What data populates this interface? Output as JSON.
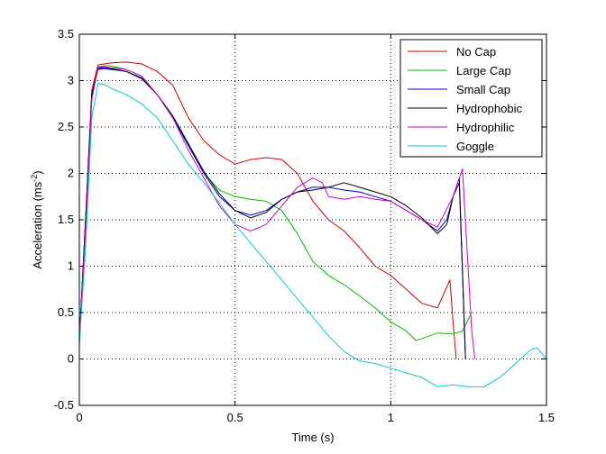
{
  "chart_data": {
    "type": "line",
    "title": "",
    "xlabel": "Time (s)",
    "ylabel_main": "Acceleration (ms",
    "ylabel_sup": "-2",
    "ylabel_close": ")",
    "xlim": [
      0,
      1.5
    ],
    "ylim": [
      -0.5,
      3.5
    ],
    "xticks": [
      0,
      0.5,
      1,
      1.5
    ],
    "xtick_labels": [
      "0",
      "0.5",
      "1",
      "1.5"
    ],
    "yticks": [
      -0.5,
      0,
      0.5,
      1,
      1.5,
      2,
      2.5,
      3,
      3.5
    ],
    "ytick_labels": [
      "-0.5",
      "0",
      "0.5",
      "1",
      "1.5",
      "2",
      "2.5",
      "3",
      "3.5"
    ],
    "grid": true,
    "legend_position": "top-right",
    "series": [
      {
        "name": "No Cap",
        "color": "#cc0000",
        "x": [
          0,
          0.02,
          0.04,
          0.06,
          0.08,
          0.1,
          0.15,
          0.2,
          0.25,
          0.3,
          0.35,
          0.4,
          0.45,
          0.5,
          0.55,
          0.6,
          0.65,
          0.7,
          0.75,
          0.8,
          0.85,
          0.9,
          0.95,
          1.0,
          1.05,
          1.1,
          1.15,
          1.17,
          1.19,
          1.2,
          1.21
        ],
        "y": [
          0.2,
          1.5,
          2.9,
          3.17,
          3.18,
          3.19,
          3.2,
          3.18,
          3.1,
          2.95,
          2.6,
          2.35,
          2.2,
          2.1,
          2.15,
          2.17,
          2.15,
          2.0,
          1.7,
          1.5,
          1.38,
          1.2,
          1.0,
          0.9,
          0.75,
          0.6,
          0.55,
          0.7,
          0.85,
          0.4,
          0.0
        ]
      },
      {
        "name": "Large Cap",
        "color": "#00bb00",
        "x": [
          0,
          0.02,
          0.04,
          0.06,
          0.08,
          0.1,
          0.15,
          0.2,
          0.25,
          0.3,
          0.35,
          0.4,
          0.45,
          0.5,
          0.55,
          0.6,
          0.65,
          0.7,
          0.75,
          0.8,
          0.85,
          0.9,
          0.95,
          1.0,
          1.05,
          1.08,
          1.1,
          1.15,
          1.2,
          1.23,
          1.26
        ],
        "y": [
          0.15,
          1.4,
          2.8,
          3.15,
          3.16,
          3.16,
          3.12,
          3.05,
          2.85,
          2.6,
          2.3,
          2.0,
          1.82,
          1.75,
          1.72,
          1.7,
          1.6,
          1.35,
          1.05,
          0.9,
          0.8,
          0.68,
          0.55,
          0.4,
          0.3,
          0.2,
          0.22,
          0.28,
          0.27,
          0.3,
          0.5
        ]
      },
      {
        "name": "Small Cap",
        "color": "#0000cc",
        "x": [
          0,
          0.02,
          0.04,
          0.06,
          0.08,
          0.1,
          0.15,
          0.2,
          0.25,
          0.3,
          0.35,
          0.4,
          0.45,
          0.5,
          0.55,
          0.6,
          0.65,
          0.7,
          0.75,
          0.8,
          0.85,
          0.9,
          0.95,
          1.0,
          1.05,
          1.1,
          1.15,
          1.18,
          1.2,
          1.22,
          1.24
        ],
        "y": [
          0.2,
          1.5,
          2.85,
          3.12,
          3.13,
          3.12,
          3.1,
          3.02,
          2.85,
          2.6,
          2.3,
          2.0,
          1.75,
          1.6,
          1.55,
          1.6,
          1.72,
          1.8,
          1.85,
          1.85,
          1.82,
          1.8,
          1.75,
          1.7,
          1.6,
          1.5,
          1.38,
          1.5,
          1.75,
          1.9,
          0.0
        ]
      },
      {
        "name": "Hydrophobic",
        "color": "#000000",
        "x": [
          0,
          0.02,
          0.04,
          0.06,
          0.08,
          0.1,
          0.15,
          0.2,
          0.25,
          0.3,
          0.35,
          0.4,
          0.45,
          0.5,
          0.55,
          0.6,
          0.65,
          0.7,
          0.75,
          0.8,
          0.85,
          0.9,
          0.95,
          1.0,
          1.05,
          1.1,
          1.15,
          1.18,
          1.2,
          1.22,
          1.24
        ],
        "y": [
          0.2,
          1.5,
          2.85,
          3.13,
          3.14,
          3.13,
          3.1,
          3.03,
          2.85,
          2.62,
          2.32,
          2.02,
          1.78,
          1.6,
          1.52,
          1.58,
          1.72,
          1.8,
          1.82,
          1.85,
          1.9,
          1.85,
          1.8,
          1.75,
          1.65,
          1.52,
          1.35,
          1.45,
          1.75,
          1.95,
          0.0
        ]
      },
      {
        "name": "Hydrophilic",
        "color": "#cc00cc",
        "x": [
          0,
          0.02,
          0.04,
          0.06,
          0.08,
          0.1,
          0.15,
          0.2,
          0.25,
          0.3,
          0.35,
          0.4,
          0.45,
          0.5,
          0.55,
          0.6,
          0.65,
          0.7,
          0.75,
          0.78,
          0.8,
          0.85,
          0.9,
          0.95,
          1.0,
          1.05,
          1.1,
          1.15,
          1.2,
          1.23,
          1.26,
          1.27
        ],
        "y": [
          0.2,
          1.4,
          2.8,
          3.14,
          3.15,
          3.14,
          3.12,
          3.05,
          2.85,
          2.6,
          2.25,
          1.95,
          1.65,
          1.45,
          1.38,
          1.45,
          1.65,
          1.85,
          1.95,
          1.9,
          1.75,
          1.72,
          1.75,
          1.72,
          1.7,
          1.6,
          1.5,
          1.42,
          1.75,
          2.05,
          0.3,
          0.0
        ]
      },
      {
        "name": "Goggle",
        "color": "#00cccc",
        "x": [
          0,
          0.02,
          0.04,
          0.06,
          0.08,
          0.1,
          0.15,
          0.2,
          0.25,
          0.3,
          0.35,
          0.4,
          0.45,
          0.5,
          0.55,
          0.6,
          0.65,
          0.7,
          0.75,
          0.8,
          0.85,
          0.9,
          0.95,
          1.0,
          1.05,
          1.1,
          1.15,
          1.2,
          1.25,
          1.3,
          1.35,
          1.4,
          1.45,
          1.47,
          1.5
        ],
        "y": [
          0.15,
          1.2,
          2.6,
          2.97,
          2.96,
          2.92,
          2.85,
          2.75,
          2.6,
          2.35,
          2.1,
          1.9,
          1.68,
          1.45,
          1.25,
          1.05,
          0.85,
          0.65,
          0.45,
          0.25,
          0.08,
          -0.02,
          -0.05,
          -0.1,
          -0.15,
          -0.2,
          -0.3,
          -0.28,
          -0.3,
          -0.3,
          -0.2,
          -0.05,
          0.1,
          0.12,
          0.0
        ]
      }
    ]
  }
}
